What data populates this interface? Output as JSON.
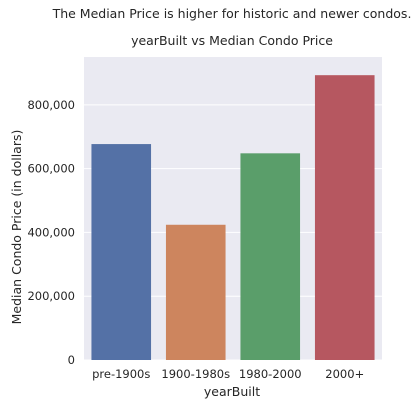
{
  "chart_data": {
    "type": "bar",
    "suptitle": "The Median Price is higher for historic and newer condos.",
    "title": "yearBuilt vs Median Condo Price",
    "xlabel": "yearBuilt",
    "ylabel": "Median Condo Price (in dollars)",
    "categories": [
      "pre-1900s",
      "1900-1980s",
      "1980-2000",
      "2000+"
    ],
    "values": [
      677000,
      424000,
      648000,
      893000
    ],
    "ylim": [
      0,
      950000
    ],
    "yticks": [
      0,
      200000,
      400000,
      600000,
      800000
    ],
    "ytick_labels": [
      "0",
      "200,000",
      "400,000",
      "600,000",
      "800,000"
    ],
    "grid": true,
    "colors": {
      "background": "#eaeaf2",
      "grid": "#ffffff",
      "bars": [
        "#5471a6",
        "#cd855e",
        "#5a9e6a",
        "#b65760"
      ]
    }
  }
}
